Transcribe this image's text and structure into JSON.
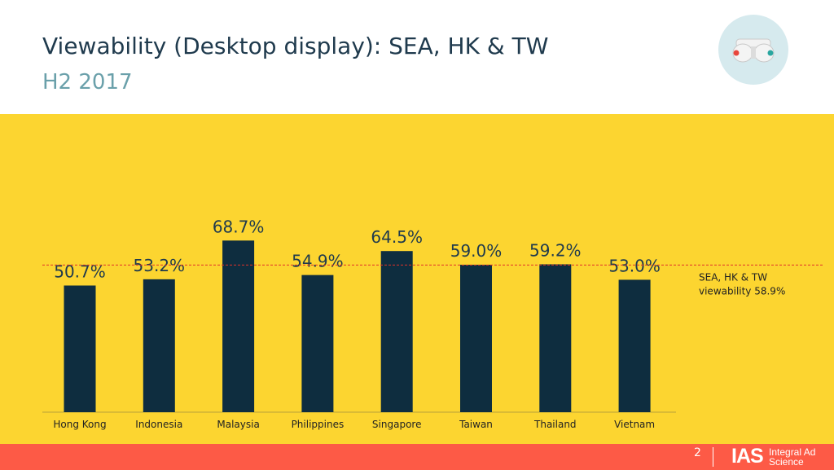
{
  "slide": {
    "title": "Viewability (Desktop display): SEA, HK & TW",
    "subtitle": "H2 2017",
    "page_number": "2",
    "brand_mark": "IAS",
    "brand_name": "Integral Ad Science",
    "logo_icon": "binoculars-icon"
  },
  "colors": {
    "chart_background": "#fcd530",
    "bar": "#0e2d3f",
    "reference_line": "#e0322a",
    "footer": "#fd5a46",
    "text": "#1f3a4d"
  },
  "chart_data": {
    "type": "bar",
    "title": "",
    "xlabel": "",
    "ylabel": "",
    "categories": [
      "Hong Kong",
      "Indonesia",
      "Malaysia",
      "Philippines",
      "Singapore",
      "Taiwan",
      "Thailand",
      "Vietnam"
    ],
    "values": [
      50.7,
      53.2,
      68.7,
      54.9,
      64.5,
      59.0,
      59.2,
      53.0
    ],
    "data_labels": [
      "50.7%",
      "53.2%",
      "68.7%",
      "54.9%",
      "64.5%",
      "59.0%",
      "59.2%",
      "53.0%"
    ],
    "reference_line": {
      "value": 58.9,
      "label_lines": [
        "SEA, HK & TW",
        "viewability 58.9%"
      ],
      "style": "dashed"
    },
    "ylim": [
      0,
      75
    ],
    "grid": false,
    "legend": "none"
  }
}
